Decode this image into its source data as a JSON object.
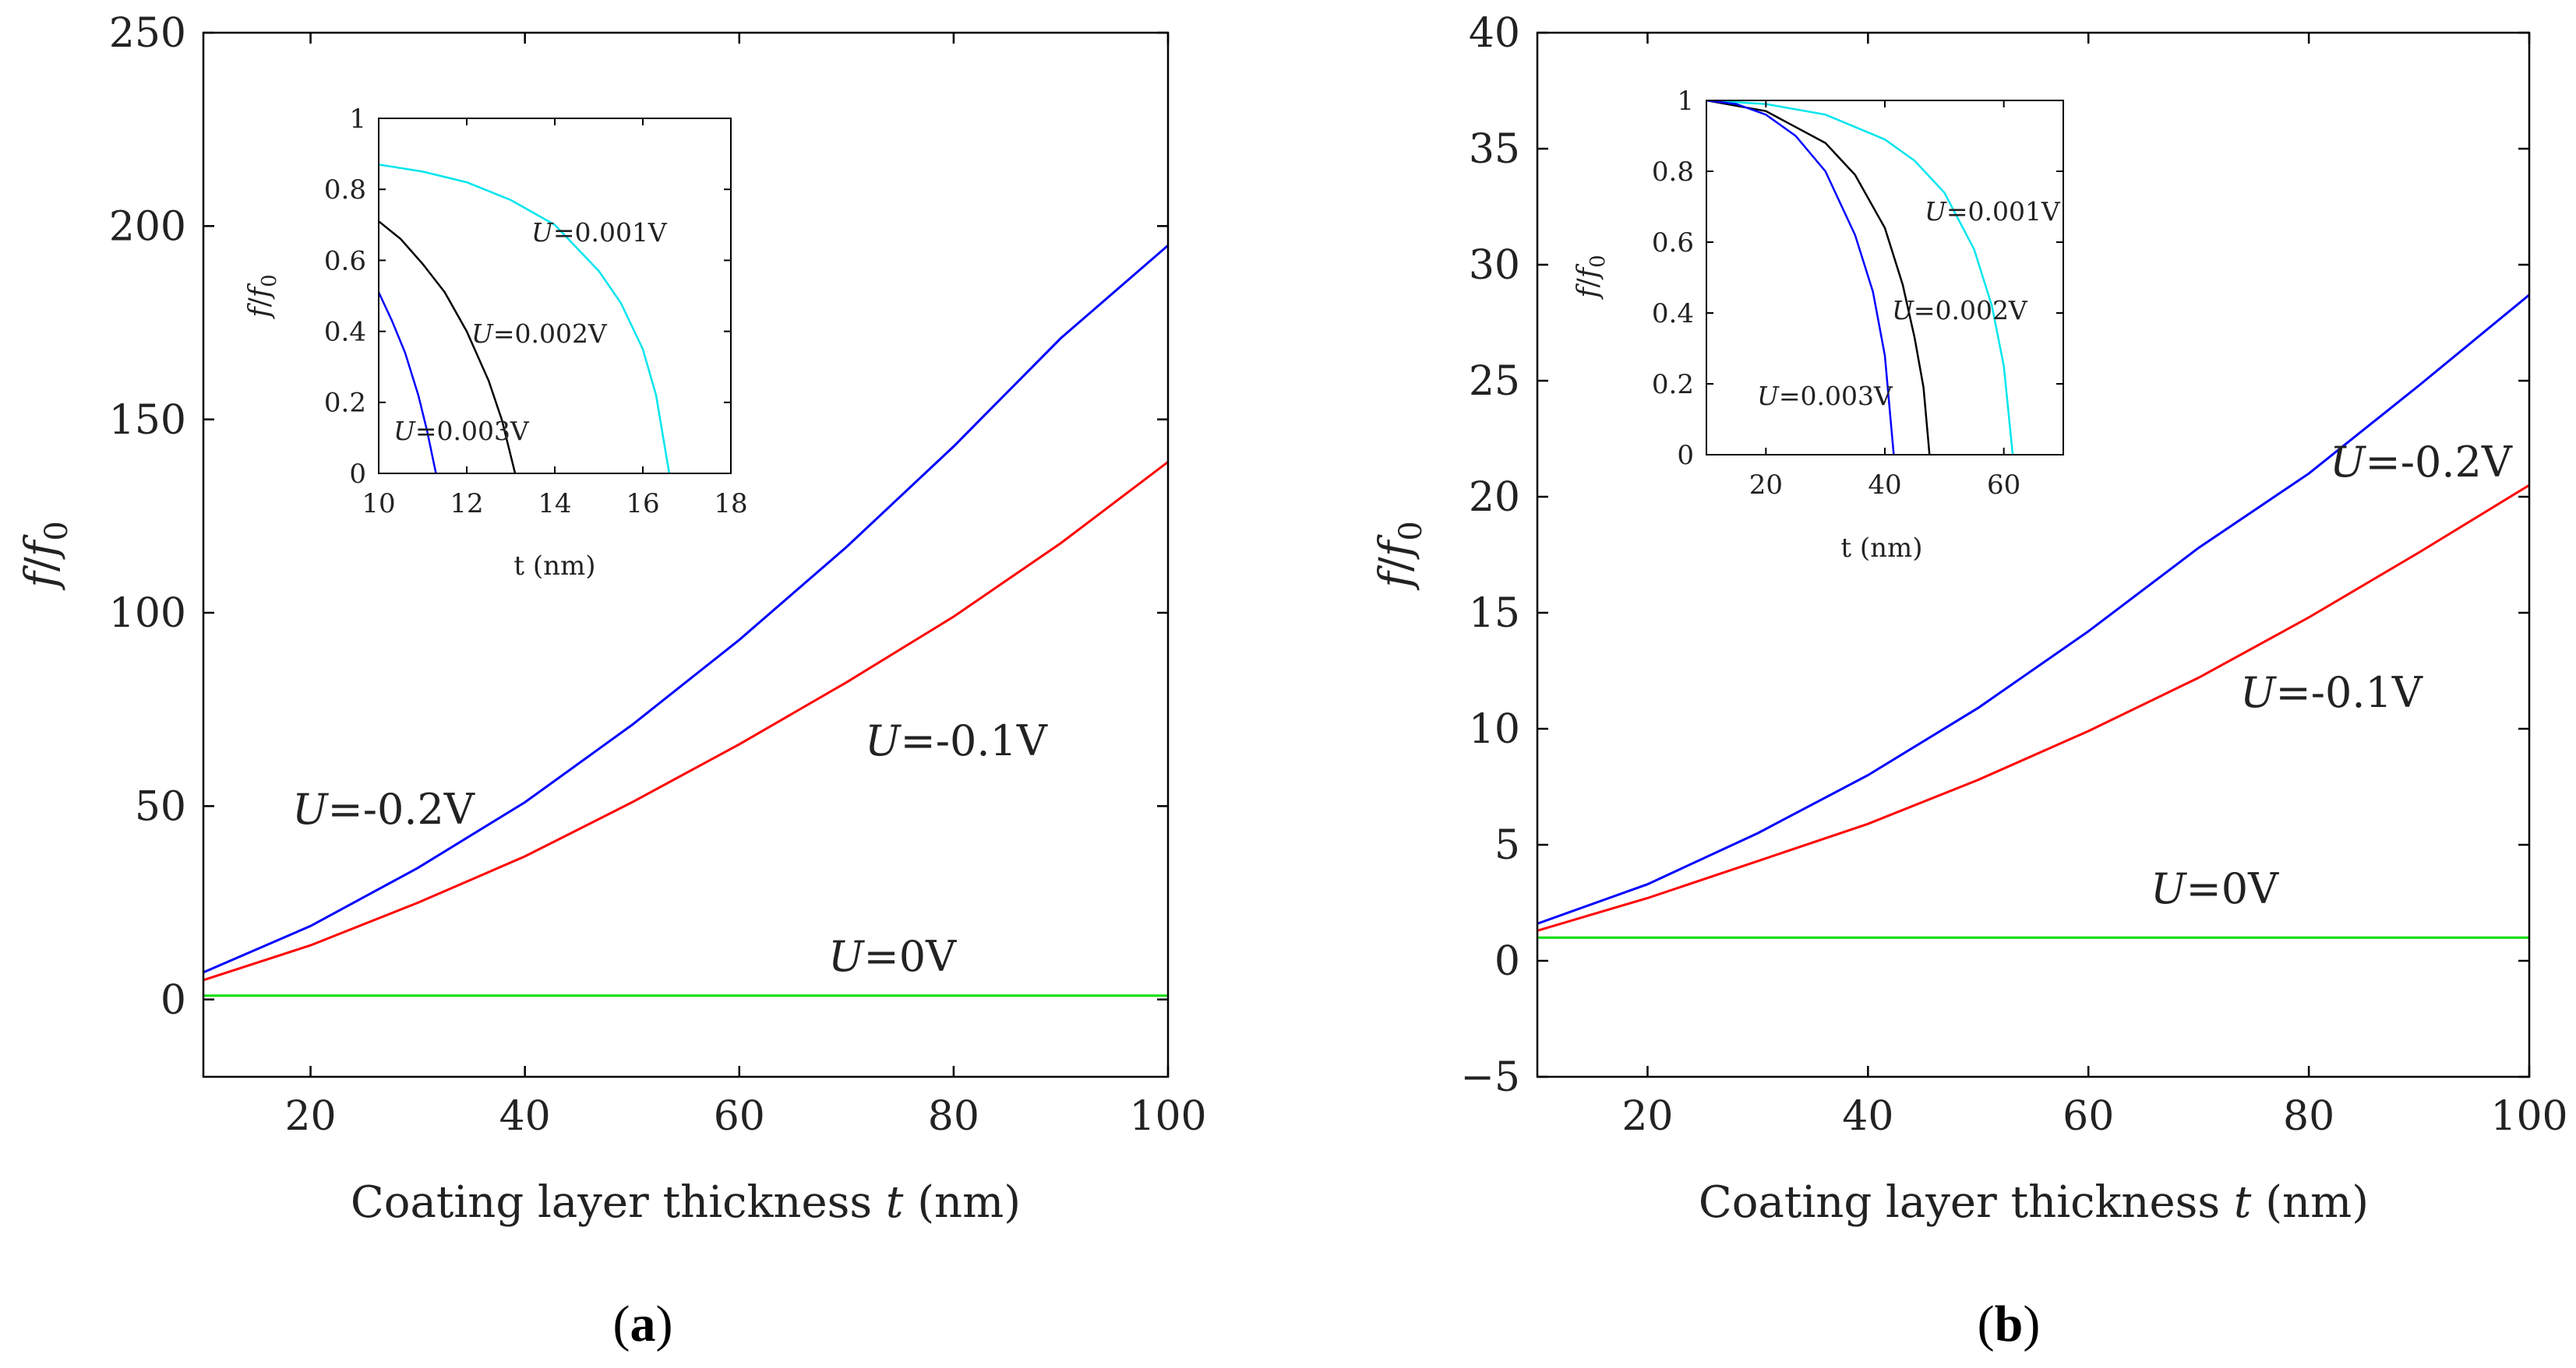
{
  "figure": {
    "panel_labels": [
      {
        "open": "(",
        "letter": "a",
        "close": ")"
      },
      {
        "open": "(",
        "letter": "b",
        "close": ")"
      }
    ]
  },
  "chart_data": [
    {
      "id": "a",
      "type": "line",
      "xlabel": "Coating layer thickness t (nm)",
      "ylabel": "f/f0",
      "xlim": [
        10,
        100
      ],
      "ylim": [
        -20,
        250
      ],
      "xticks": [
        "20",
        "40",
        "60",
        "80",
        "100"
      ],
      "yticks": [
        "0",
        "50",
        "100",
        "150",
        "200",
        "250"
      ],
      "series": [
        {
          "name": "U=-0.2V",
          "color": "#0000ff",
          "x": [
            10,
            20,
            30,
            40,
            50,
            60,
            70,
            80,
            90,
            100
          ],
          "y": [
            7,
            19,
            34,
            51,
            71,
            93,
            117,
            143,
            171,
            195
          ]
        },
        {
          "name": "U=-0.1V",
          "color": "#ff0000",
          "x": [
            10,
            20,
            30,
            40,
            50,
            60,
            70,
            80,
            90,
            100
          ],
          "y": [
            5,
            14,
            25,
            37,
            51,
            66,
            82,
            99,
            118,
            139
          ]
        },
        {
          "name": "U=0V",
          "color": "#00dd00",
          "x": [
            10,
            100
          ],
          "y": [
            1,
            1
          ]
        }
      ],
      "annotations": [
        "U=-0.2V",
        "U=-0.1V",
        "U=0V"
      ],
      "inset": {
        "type": "line",
        "xlabel": "t (nm)",
        "ylabel": "f/f0",
        "xlim": [
          10,
          18
        ],
        "ylim": [
          0,
          1
        ],
        "xticks": [
          "10",
          "12",
          "14",
          "16",
          "18"
        ],
        "yticks": [
          "0",
          "0.2",
          "0.4",
          "0.6",
          "0.8",
          "1"
        ],
        "series": [
          {
            "name": "U=0.001V",
            "color": "#00e5ee",
            "x": [
              10,
              11,
              12,
              13,
              14,
              15,
              15.5,
              16,
              16.3,
              16.6
            ],
            "y": [
              0.87,
              0.85,
              0.82,
              0.77,
              0.7,
              0.57,
              0.48,
              0.35,
              0.22,
              0
            ]
          },
          {
            "name": "U=0.002V",
            "color": "#000000",
            "x": [
              10,
              10.5,
              11,
              11.5,
              12,
              12.5,
              12.8,
              13.1
            ],
            "y": [
              0.71,
              0.66,
              0.59,
              0.51,
              0.4,
              0.26,
              0.15,
              0
            ]
          },
          {
            "name": "U=0.003V",
            "color": "#0000ff",
            "x": [
              10,
              10.3,
              10.6,
              10.9,
              11.1,
              11.3
            ],
            "y": [
              0.51,
              0.43,
              0.34,
              0.22,
              0.12,
              0
            ]
          }
        ],
        "annotations": [
          "U=0.001V",
          "U=0.002V",
          "U=0.003V"
        ]
      }
    },
    {
      "id": "b",
      "type": "line",
      "xlabel": "Coating layer thickness t (nm)",
      "ylabel": "f/f0",
      "xlim": [
        10,
        100
      ],
      "ylim": [
        -5,
        40
      ],
      "xticks": [
        "20",
        "40",
        "60",
        "80",
        "100"
      ],
      "yticks": [
        "-5",
        "0",
        "5",
        "10",
        "15",
        "20",
        "25",
        "30",
        "35",
        "40"
      ],
      "series": [
        {
          "name": "U=-0.2V",
          "color": "#0000ff",
          "x": [
            10,
            20,
            30,
            40,
            50,
            60,
            70,
            80,
            90,
            100
          ],
          "y": [
            1.6,
            3.3,
            5.5,
            8.0,
            10.9,
            14.2,
            17.8,
            21.0,
            24.8,
            28.7
          ]
        },
        {
          "name": "U=-0.1V",
          "color": "#ff0000",
          "x": [
            10,
            20,
            30,
            40,
            50,
            60,
            70,
            80,
            90,
            100
          ],
          "y": [
            1.3,
            2.7,
            4.3,
            5.9,
            7.8,
            9.9,
            12.2,
            14.8,
            17.6,
            20.5
          ]
        },
        {
          "name": "U=0V",
          "color": "#00dd00",
          "x": [
            10,
            100
          ],
          "y": [
            1,
            1
          ]
        }
      ],
      "annotations": [
        "U=-0.2V",
        "U=-0.1V",
        "U=0V"
      ],
      "inset": {
        "type": "line",
        "xlabel": "t (nm)",
        "ylabel": "f/f0",
        "xlim": [
          10,
          70
        ],
        "ylim": [
          0,
          1
        ],
        "xticks": [
          "20",
          "40",
          "60"
        ],
        "yticks": [
          "0",
          "0.2",
          "0.4",
          "0.6",
          "0.8",
          "1"
        ],
        "series": [
          {
            "name": "U=0.001V",
            "color": "#00e5ee",
            "x": [
              10,
              20,
              30,
              40,
              45,
              50,
              55,
              58,
              60,
              61.5
            ],
            "y": [
              1,
              0.99,
              0.96,
              0.89,
              0.83,
              0.74,
              0.58,
              0.42,
              0.25,
              0
            ]
          },
          {
            "name": "U=0.002V",
            "color": "#000000",
            "x": [
              10,
              20,
              30,
              35,
              40,
              43,
              45,
              46.5,
              47.5
            ],
            "y": [
              1,
              0.97,
              0.88,
              0.79,
              0.64,
              0.48,
              0.33,
              0.19,
              0
            ]
          },
          {
            "name": "U=0.003V",
            "color": "#0000ff",
            "x": [
              10,
              15,
              20,
              25,
              30,
              35,
              38,
              40,
              41.5
            ],
            "y": [
              1,
              0.99,
              0.96,
              0.9,
              0.8,
              0.62,
              0.46,
              0.28,
              0
            ]
          }
        ],
        "annotations": [
          "U=0.001V",
          "U=0.002V",
          "U=0.003V"
        ]
      }
    }
  ]
}
